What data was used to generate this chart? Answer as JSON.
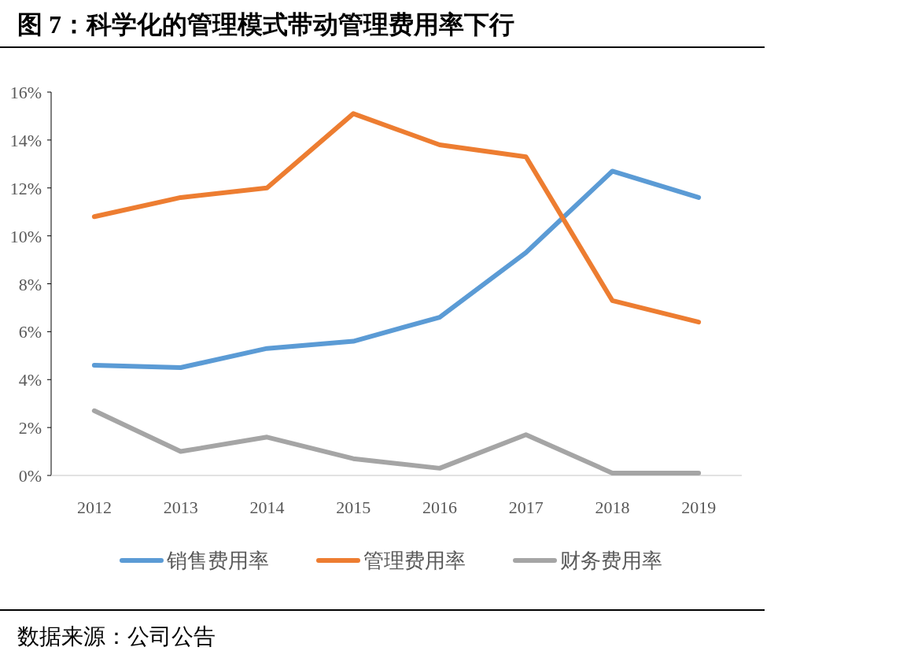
{
  "chart_data": {
    "type": "line",
    "title": "图 7：科学化的管理模式带动管理费用率下行",
    "annotations": [
      "数据来源：公司公告"
    ],
    "categories": [
      "2012",
      "2013",
      "2014",
      "2015",
      "2016",
      "2017",
      "2018",
      "2019"
    ],
    "series": [
      {
        "name": "销售费用率",
        "color": "#5b9bd5",
        "values": [
          4.6,
          4.5,
          5.3,
          5.6,
          6.6,
          9.3,
          12.7,
          11.6
        ]
      },
      {
        "name": "管理费用率",
        "color": "#ed7d31",
        "values": [
          10.8,
          11.6,
          12.0,
          15.1,
          13.8,
          13.3,
          7.3,
          6.4
        ]
      },
      {
        "name": "财务费用率",
        "color": "#a5a5a5",
        "values": [
          2.7,
          1.0,
          1.6,
          0.7,
          0.3,
          1.7,
          0.1,
          0.1
        ]
      }
    ],
    "ylim": [
      0,
      16
    ],
    "yticks": [
      {
        "value": 0,
        "label": "0%"
      },
      {
        "value": 2,
        "label": "2%"
      },
      {
        "value": 4,
        "label": "4%"
      },
      {
        "value": 6,
        "label": "6%"
      },
      {
        "value": 8,
        "label": "8%"
      },
      {
        "value": 10,
        "label": "10%"
      },
      {
        "value": 12,
        "label": "12%"
      },
      {
        "value": 14,
        "label": "14%"
      },
      {
        "value": 16,
        "label": "16%"
      }
    ],
    "grid": false,
    "legend": "bottom"
  }
}
